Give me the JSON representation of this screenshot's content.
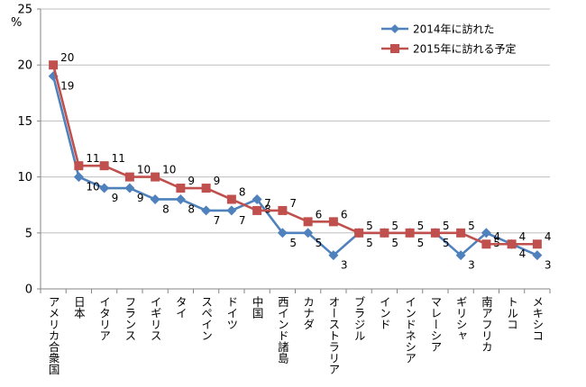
{
  "chart_data": {
    "type": "line",
    "title": "",
    "xlabel": "",
    "ylabel": "%",
    "ylim": [
      0,
      25
    ],
    "yticks": [
      0,
      5,
      10,
      15,
      20,
      25
    ],
    "grid": "horizontal",
    "legend_position": "top-right",
    "categories": [
      "アメリカ合衆国",
      "日本",
      "イタリア",
      "フランス",
      "イギリス",
      "タイ",
      "スペイン",
      "ドイツ",
      "中国",
      "西インド諸島",
      "カナダ",
      "オーストラリア",
      "ブラジル",
      "インド",
      "インドネシア",
      "マレーシア",
      "ギリシャ",
      "南アフリカ",
      "トルコ",
      "メキシコ"
    ],
    "series": [
      {
        "name": "2014年に訪れた",
        "color": "#4f81bd",
        "marker": "diamond",
        "label_side": "below",
        "values": [
          19,
          10,
          9,
          9,
          8,
          8,
          7,
          7,
          8,
          5,
          5,
          3,
          5,
          5,
          5,
          5,
          3,
          5,
          4,
          3
        ]
      },
      {
        "name": "2015年に訪れる予定",
        "color": "#c0504d",
        "marker": "square",
        "label_side": "above",
        "values": [
          20,
          11,
          11,
          10,
          10,
          9,
          9,
          8,
          7,
          7,
          6,
          6,
          5,
          5,
          5,
          5,
          5,
          4,
          4,
          4
        ]
      }
    ]
  }
}
